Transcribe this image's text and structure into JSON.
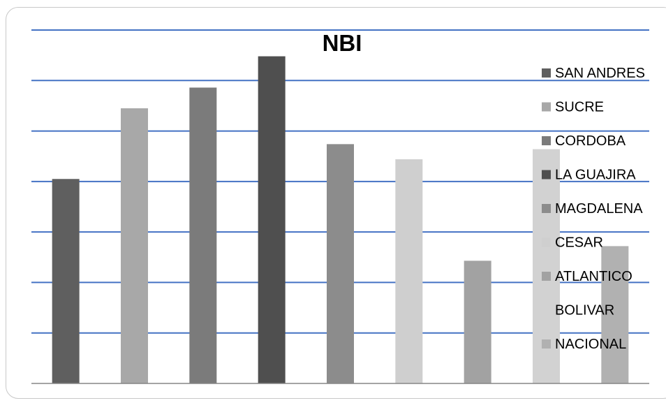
{
  "chart_data": {
    "type": "bar",
    "title": "NBI",
    "xlabel": "",
    "ylabel": "",
    "ylim": [
      0,
      7
    ],
    "grid": true,
    "legend_placement": "right",
    "categories": [
      "SAN ANDRES",
      "SUCRE",
      "CORDOBA",
      "LA GUAJIRA",
      "MAGDALENA",
      "CESAR",
      "ATLANTICO",
      "BOLIVAR",
      "NACIONAL"
    ],
    "values": [
      4.05,
      5.45,
      5.86,
      6.48,
      4.74,
      4.44,
      2.43,
      4.64,
      2.72
    ],
    "colors": [
      "#5f5f5f",
      "#a8a8a8",
      "#7b7b7b",
      "#4f4f4f",
      "#8c8c8c",
      "#cfcfcf",
      "#a2a2a2",
      "#d2d2d2",
      "#b1b1b1"
    ],
    "gridline_color": "#4472c4",
    "axis_color": "#868686"
  }
}
